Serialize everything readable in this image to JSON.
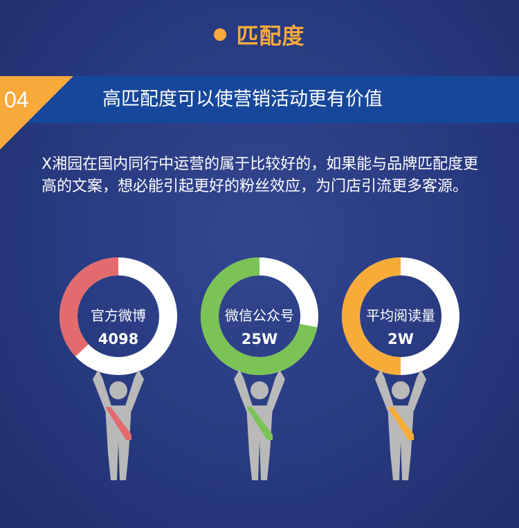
{
  "header": {
    "title": "匹配度",
    "dot_color": "#f7a93b"
  },
  "banner": {
    "number": "04",
    "text": "高匹配度可以使营销活动更有价值"
  },
  "description": "X湘园在国内同行中运营的属于比较好的，如果能与品牌匹配度更高的文案，想必能引起更好的粉丝效应，为门店引流更多客源。",
  "stats": [
    {
      "label": "官方微博",
      "value": "4098",
      "color": "#e36b6e",
      "fill": 0.37
    },
    {
      "label": "微信公众号",
      "value": "25W",
      "color": "#7cc355",
      "fill": 0.72
    },
    {
      "label": "平均阅读量",
      "value": "2W",
      "color": "#f7ac3a",
      "fill": 0.5
    }
  ]
}
